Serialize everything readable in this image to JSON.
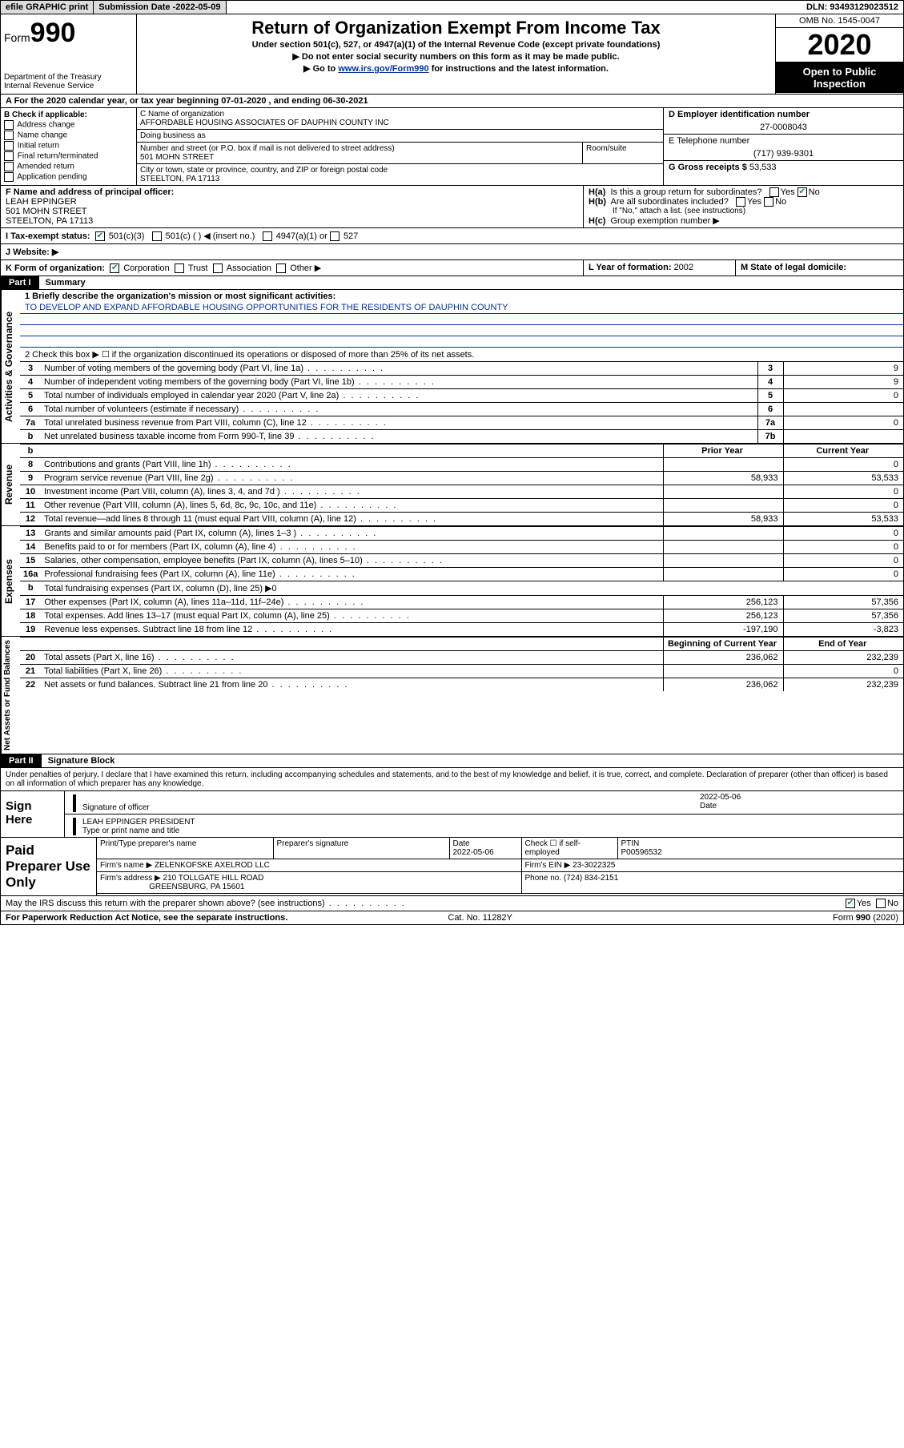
{
  "topbar": {
    "efile": "efile GRAPHIC print",
    "subdate_lbl": "Submission Date - ",
    "subdate": "2022-05-09",
    "dln_lbl": "DLN: ",
    "dln": "93493129023512"
  },
  "hdr": {
    "form_word": "Form",
    "form_num": "990",
    "dept": "Department of the Treasury\nInternal Revenue Service",
    "title": "Return of Organization Exempt From Income Tax",
    "sub": "Under section 501(c), 527, or 4947(a)(1) of the Internal Revenue Code (except private foundations)",
    "arrow1": "▶ Do not enter social security numbers on this form as it may be made public.",
    "arrow2_a": "▶ Go to ",
    "arrow2_link": "www.irs.gov/Form990",
    "arrow2_b": " for instructions and the latest information.",
    "omb": "OMB No. 1545-0047",
    "year": "2020",
    "open": "Open to Public Inspection"
  },
  "row_a": "A  For the 2020 calendar year, or tax year beginning 07-01-2020     , and ending 06-30-2021",
  "col_b": {
    "lbl": "B Check if applicable:",
    "items": [
      "Address change",
      "Name change",
      "Initial return",
      "Final return/terminated",
      "Amended return",
      "Application pending"
    ]
  },
  "col_c": {
    "name_lbl": "C Name of organization",
    "name": "AFFORDABLE HOUSING ASSOCIATES OF DAUPHIN COUNTY INC",
    "dba_lbl": "Doing business as",
    "dba": "",
    "addr_lbl": "Number and street (or P.O. box if mail is not delivered to street address)",
    "addr": "501 MOHN STREET",
    "room_lbl": "Room/suite",
    "city_lbl": "City or town, state or province, country, and ZIP or foreign postal code",
    "city": "STEELTON, PA  17113"
  },
  "col_d": {
    "ein_lbl": "D Employer identification number",
    "ein": "27-0008043",
    "tel_lbl": "E Telephone number",
    "tel": "(717) 939-9301",
    "gross_lbl": "G Gross receipts $ ",
    "gross": "53,533"
  },
  "fh": {
    "f_lbl": "F  Name and address of principal officer:",
    "f_name": "LEAH EPPINGER",
    "f_addr1": "501 MOHN STREET",
    "f_addr2": "STEELTON, PA  17113",
    "ha": "H(a)  Is this a group return for subordinates?",
    "hb": "H(b)  Are all subordinates included?",
    "hb_note": "If \"No,\" attach a list. (see instructions)",
    "hc": "H(c)  Group exemption number ▶",
    "yes": "Yes",
    "no": "No"
  },
  "row_i": {
    "lbl": "I   Tax-exempt status:",
    "o1": "501(c)(3)",
    "o2": "501(c) (  ) ◀ (insert no.)",
    "o3": "4947(a)(1) or",
    "o4": "527"
  },
  "row_j": "J   Website: ▶",
  "row_k": {
    "k": "K Form of organization:",
    "corp": "Corporation",
    "trust": "Trust",
    "assoc": "Association",
    "other": "Other ▶",
    "l_lbl": "L Year of formation: ",
    "l_val": "2002",
    "m_lbl": "M State of legal domicile:",
    "m_val": ""
  },
  "part1": {
    "tag": "Part I",
    "title": "Summary",
    "side1": "Activities & Governance",
    "l1": "1   Briefly describe the organization's mission or most significant activities:",
    "mission": "TO DEVELOP AND EXPAND AFFORDABLE HOUSING OPPORTUNITIES FOR THE RESIDENTS OF DAUPHIN COUNTY",
    "l2": "2   Check this box ▶ ☐  if the organization discontinued its operations or disposed of more than 25% of its net assets.",
    "rows_gov": [
      {
        "n": "3",
        "t": "Number of voting members of the governing body (Part VI, line 1a)",
        "box": "3",
        "v": "9"
      },
      {
        "n": "4",
        "t": "Number of independent voting members of the governing body (Part VI, line 1b)",
        "box": "4",
        "v": "9"
      },
      {
        "n": "5",
        "t": "Total number of individuals employed in calendar year 2020 (Part V, line 2a)",
        "box": "5",
        "v": "0"
      },
      {
        "n": "6",
        "t": "Total number of volunteers (estimate if necessary)",
        "box": "6",
        "v": ""
      },
      {
        "n": "7a",
        "t": "Total unrelated business revenue from Part VIII, column (C), line 12",
        "box": "7a",
        "v": "0"
      },
      {
        "n": "b",
        "t": "Net unrelated business taxable income from Form 990-T, line 39",
        "box": "7b",
        "v": ""
      }
    ],
    "side2": "Revenue",
    "hdr_prior": "Prior Year",
    "hdr_curr": "Current Year",
    "rows_rev": [
      {
        "n": "8",
        "t": "Contributions and grants (Part VIII, line 1h)",
        "p": "",
        "c": "0"
      },
      {
        "n": "9",
        "t": "Program service revenue (Part VIII, line 2g)",
        "p": "58,933",
        "c": "53,533"
      },
      {
        "n": "10",
        "t": "Investment income (Part VIII, column (A), lines 3, 4, and 7d )",
        "p": "",
        "c": "0"
      },
      {
        "n": "11",
        "t": "Other revenue (Part VIII, column (A), lines 5, 6d, 8c, 9c, 10c, and 11e)",
        "p": "",
        "c": "0"
      },
      {
        "n": "12",
        "t": "Total revenue—add lines 8 through 11 (must equal Part VIII, column (A), line 12)",
        "p": "58,933",
        "c": "53,533"
      }
    ],
    "side3": "Expenses",
    "rows_exp": [
      {
        "n": "13",
        "t": "Grants and similar amounts paid (Part IX, column (A), lines 1–3 )",
        "p": "",
        "c": "0"
      },
      {
        "n": "14",
        "t": "Benefits paid to or for members (Part IX, column (A), line 4)",
        "p": "",
        "c": "0"
      },
      {
        "n": "15",
        "t": "Salaries, other compensation, employee benefits (Part IX, column (A), lines 5–10)",
        "p": "",
        "c": "0"
      },
      {
        "n": "16a",
        "t": "Professional fundraising fees (Part IX, column (A), line 11e)",
        "p": "",
        "c": "0"
      },
      {
        "n": "b",
        "t": "Total fundraising expenses (Part IX, column (D), line 25) ▶0",
        "p": "-",
        "c": "-"
      },
      {
        "n": "17",
        "t": "Other expenses (Part IX, column (A), lines 11a–11d, 11f–24e)",
        "p": "256,123",
        "c": "57,356"
      },
      {
        "n": "18",
        "t": "Total expenses. Add lines 13–17 (must equal Part IX, column (A), line 25)",
        "p": "256,123",
        "c": "57,356"
      },
      {
        "n": "19",
        "t": "Revenue less expenses. Subtract line 18 from line 12",
        "p": "-197,190",
        "c": "-3,823"
      }
    ],
    "side4": "Net Assets or Fund Balances",
    "hdr_beg": "Beginning of Current Year",
    "hdr_end": "End of Year",
    "rows_na": [
      {
        "n": "20",
        "t": "Total assets (Part X, line 16)",
        "p": "236,062",
        "c": "232,239"
      },
      {
        "n": "21",
        "t": "Total liabilities (Part X, line 26)",
        "p": "",
        "c": "0"
      },
      {
        "n": "22",
        "t": "Net assets or fund balances. Subtract line 21 from line 20",
        "p": "236,062",
        "c": "232,239"
      }
    ]
  },
  "part2": {
    "tag": "Part II",
    "title": "Signature Block",
    "perjury": "Under penalties of perjury, I declare that I have examined this return, including accompanying schedules and statements, and to the best of my knowledge and belief, it is true, correct, and complete. Declaration of preparer (other than officer) is based on all information of which preparer has any knowledge."
  },
  "sign": {
    "lbl": "Sign Here",
    "sig_lbl": "Signature of officer",
    "date_lbl": "Date",
    "date": "2022-05-06",
    "name": "LEAH EPPINGER PRESIDENT",
    "name_lbl": "Type or print name and title"
  },
  "paid": {
    "lbl": "Paid Preparer Use Only",
    "r1": {
      "a": "Print/Type preparer's name",
      "b": "Preparer's signature",
      "c_lbl": "Date",
      "c": "2022-05-06",
      "d": "Check ☐ if self-employed",
      "e_lbl": "PTIN",
      "e": "P00596532"
    },
    "r2": {
      "a": "Firm's name    ▶ ",
      "b": "ZELENKOFSKE AXELROD LLC",
      "c": "Firm's EIN ▶ ",
      "d": "23-3022325"
    },
    "r3": {
      "a": "Firm's address ▶ ",
      "b": "210 TOLLGATE HILL ROAD",
      "b2": "GREENSBURG, PA  15601",
      "c": "Phone no. ",
      "d": "(724) 834-2151"
    }
  },
  "discuss": {
    "t": "May the IRS discuss this return with the preparer shown above? (see instructions)",
    "yes": "Yes",
    "no": "No"
  },
  "foot": {
    "a": "For Paperwork Reduction Act Notice, see the separate instructions.",
    "b": "Cat. No. 11282Y",
    "c": "Form 990 (2020)"
  }
}
